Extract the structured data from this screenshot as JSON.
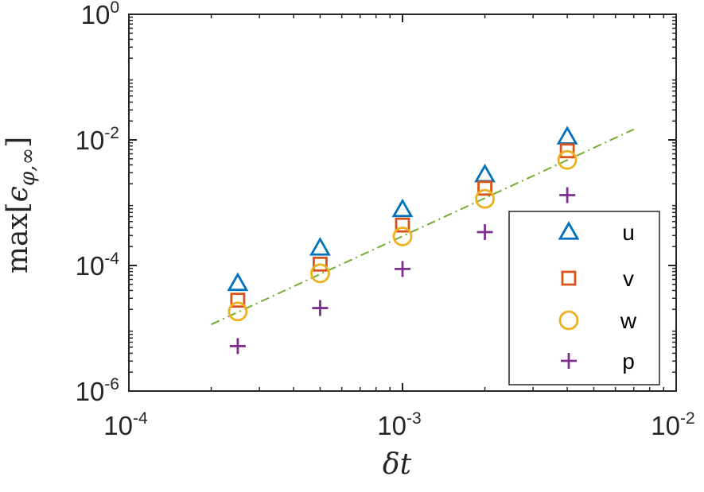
{
  "chart_data": {
    "type": "scatter",
    "xscale": "log",
    "yscale": "log",
    "xlim": [
      0.0001,
      0.01
    ],
    "ylim": [
      1e-06,
      1
    ],
    "xlabel": "δt",
    "ylabel": {
      "prefix": "max",
      "symbol": "ϵ",
      "subscript": "φ,∞"
    },
    "xticks": [
      {
        "value": 0.0001,
        "base": "10",
        "exp": "-4"
      },
      {
        "value": 0.001,
        "base": "10",
        "exp": "-3"
      },
      {
        "value": 0.01,
        "base": "10",
        "exp": "-2"
      }
    ],
    "yticks": [
      {
        "value": 1e-06,
        "base": "10",
        "exp": "-6"
      },
      {
        "value": 0.0001,
        "base": "10",
        "exp": "-4"
      },
      {
        "value": 0.01,
        "base": "10",
        "exp": "-2"
      },
      {
        "value": 1,
        "base": "10",
        "exp": "0"
      }
    ],
    "x": [
      0.00025,
      0.0005,
      0.001,
      0.002,
      0.004
    ],
    "series": [
      {
        "name": "u",
        "marker": "triangle",
        "color": "#0072BD",
        "values": [
          5.2e-05,
          0.00019,
          0.00078,
          0.0028,
          0.0112
        ]
      },
      {
        "name": "v",
        "marker": "square",
        "color": "#D95319",
        "values": [
          2.8e-05,
          0.000105,
          0.00044,
          0.0017,
          0.0067
        ]
      },
      {
        "name": "w",
        "marker": "circle",
        "color": "#EDB120",
        "values": [
          1.85e-05,
          7.5e-05,
          0.00029,
          0.00115,
          0.0048
        ]
      },
      {
        "name": "p",
        "marker": "plus",
        "color": "#7E2F8E",
        "values": [
          5.2e-06,
          2.1e-05,
          8.8e-05,
          0.00034,
          0.00132
        ]
      }
    ],
    "reference_line": {
      "style": "dash-dot",
      "color": "#77AC30",
      "x": [
        0.0002,
        0.007
      ],
      "y": [
        1.15e-05,
        0.0147
      ]
    },
    "legend": {
      "placement": "bottom-right",
      "entries": [
        "u",
        "v",
        "w",
        "p"
      ]
    }
  }
}
